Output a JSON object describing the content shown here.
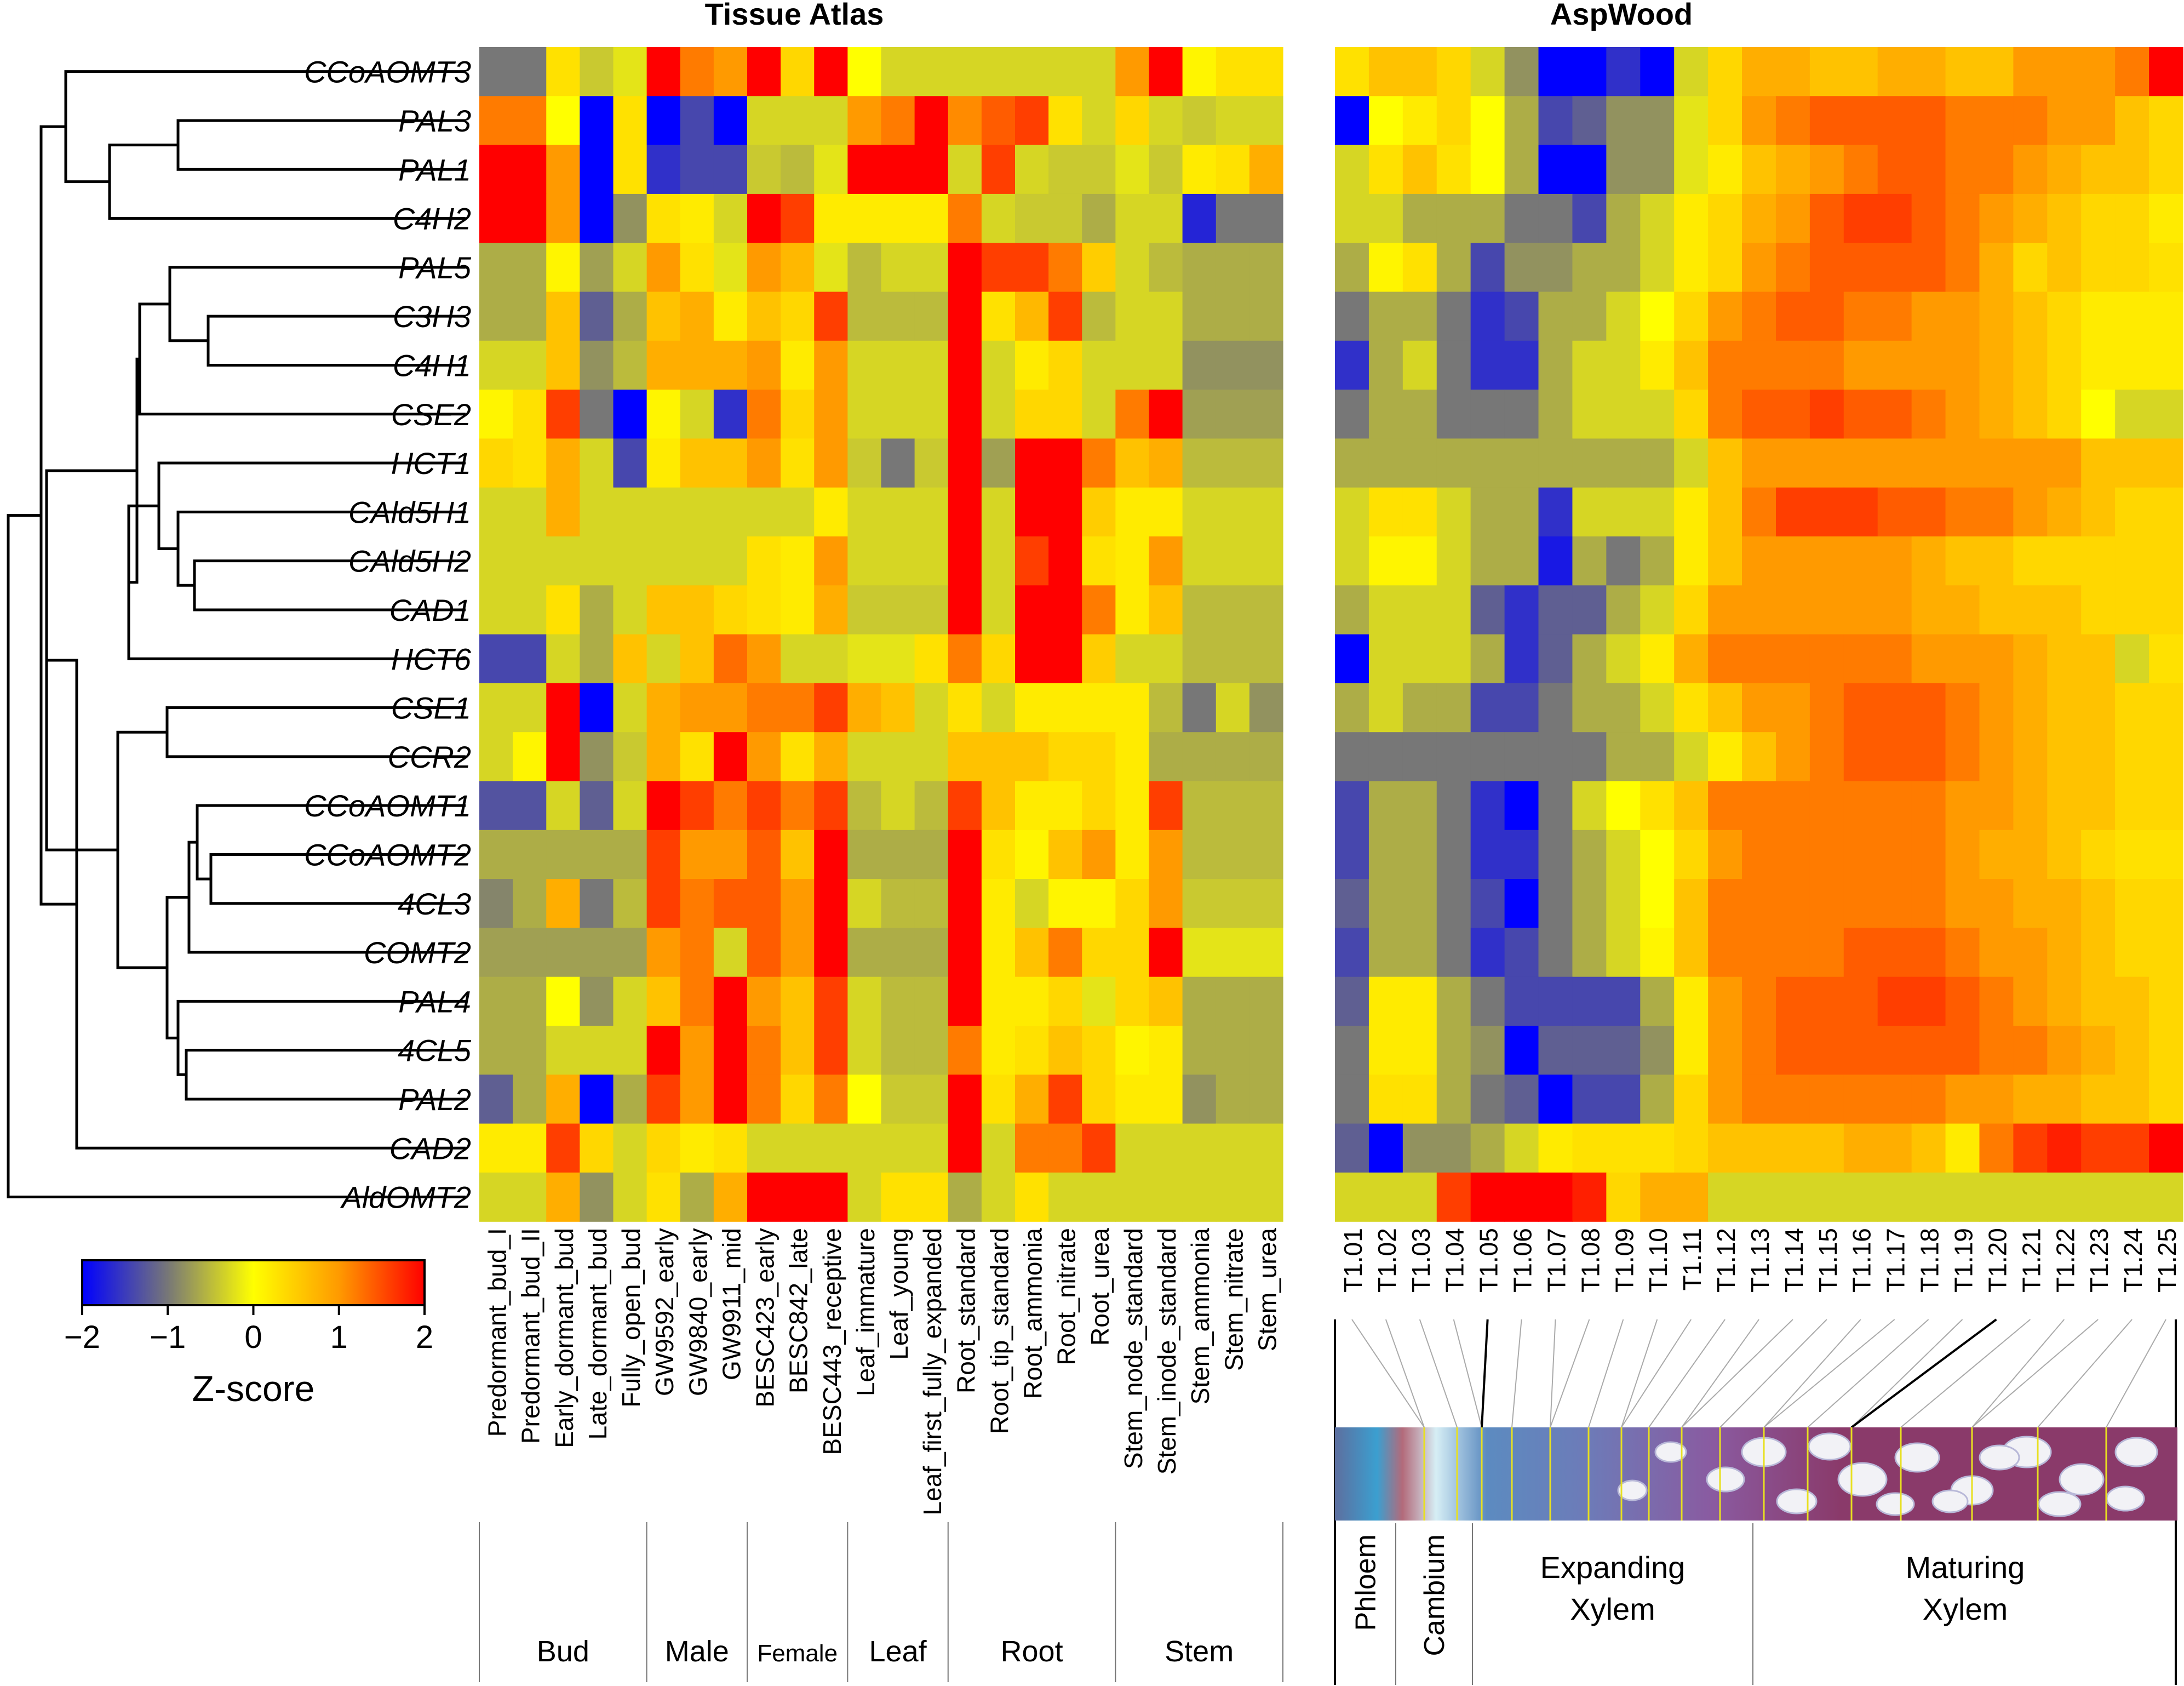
{
  "colors": {
    "cmap": [
      "#0000ff",
      "#777777",
      "#ffff00",
      "#ff9a00",
      "#ff0000"
    ]
  },
  "chart_data": {
    "type": "heatmap",
    "titles": {
      "left": "Tissue Atlas",
      "right": "AspWood"
    },
    "genes": [
      "CCoAOMT3",
      "PAL3",
      "PAL1",
      "C4H2",
      "PAL5",
      "C3H3",
      "C4H1",
      "CSE2",
      "HCT1",
      "CAld5H1",
      "CAld5H2",
      "CAD1",
      "HCT6",
      "CSE1",
      "CCR2",
      "CCoAOMT1",
      "CCoAOMT2",
      "4CL3",
      "COMT2",
      "PAL4",
      "4CL5",
      "PAL2",
      "CAD2",
      "AldOMT2"
    ],
    "atlas_samples": [
      "Predormant_bud_I",
      "Predormant_bud_II",
      "Early_dormant_bud",
      "Late_dormant_bud",
      "Fully_open_bud",
      "GW9592_early",
      "GW9840_early",
      "GW9911_mid",
      "BESC423_early",
      "BESC842_late",
      "BESC443_receptive",
      "Leaf_immature",
      "Leaf_young",
      "Leaf_first_fully_expanded",
      "Root_standard",
      "Root_tip_standard",
      "Root_ammonia",
      "Root_nitrate",
      "Root_urea",
      "Stem_node_standard",
      "Stem_inode_standard",
      "Stem_ammonia",
      "Stem_nitrate",
      "Stem_urea"
    ],
    "atlas_groups": [
      "Bud",
      "Male",
      "Female",
      "Leaf",
      "Root",
      "Stem"
    ],
    "aspwood_samples": [
      "T1.01",
      "T1.02",
      "T1.03",
      "T1.04",
      "T1.05",
      "T1.06",
      "T1.07",
      "T1.08",
      "T1.09",
      "T1.10",
      "T1.11",
      "T1.12",
      "T1.13",
      "T1.14",
      "T1.15",
      "T1.16",
      "T1.17",
      "T1.18",
      "T1.19",
      "T1.20",
      "T1.21",
      "T1.22",
      "T1.23",
      "T1.24",
      "T1.25"
    ],
    "aspwood_zones": [
      "Phloem",
      "Cambium",
      "Expanding\nXylem",
      "Maturing\nXylem"
    ],
    "colorbar": {
      "label": "Z-score",
      "ticks": [
        "−2",
        "−1",
        "0",
        "1",
        "2"
      ],
      "range": [
        -2,
        2
      ]
    },
    "atlas_values": [
      [
        -1,
        -1,
        0.3,
        -0.4,
        -0.2,
        2,
        1.2,
        1,
        2,
        0.4,
        2,
        0,
        -0.3,
        -0.3,
        -0.3,
        -0.3,
        -0.3,
        -0.3,
        -0.3,
        1,
        2,
        0.1,
        0.3,
        0.3
      ],
      [
        1.2,
        1.2,
        0,
        -2,
        0.3,
        -2,
        -1.4,
        -2,
        -0.3,
        -0.3,
        -0.3,
        1,
        1.2,
        2,
        1.1,
        1.4,
        1.6,
        0.3,
        -0.3,
        0.4,
        -0.3,
        -0.4,
        -0.3,
        -0.3
      ],
      [
        2,
        2,
        1,
        -2,
        0.3,
        -1.6,
        -1.4,
        -1.4,
        -0.4,
        -0.5,
        -0.2,
        2,
        2,
        2,
        -0.3,
        1.6,
        -0.3,
        -0.4,
        -0.4,
        -0.2,
        -0.4,
        0.2,
        0.3,
        0.8
      ],
      [
        2,
        2,
        1,
        -2,
        -0.8,
        0.3,
        0.2,
        -0.3,
        2,
        1.6,
        0.2,
        0.2,
        0.2,
        0.2,
        1.2,
        -0.3,
        -0.4,
        -0.4,
        -0.6,
        -0.3,
        -0.3,
        -1.7,
        -1,
        -1
      ],
      [
        -0.6,
        -0.6,
        0.1,
        -0.7,
        -0.3,
        1,
        0.3,
        -0.2,
        1,
        0.7,
        -0.2,
        -0.5,
        -0.3,
        -0.3,
        2,
        1.6,
        1.6,
        1.2,
        0.5,
        -0.3,
        -0.5,
        -0.6,
        -0.6,
        -0.6
      ],
      [
        -0.6,
        -0.6,
        0.6,
        -1.2,
        -0.6,
        0.6,
        0.8,
        0.2,
        0.6,
        0.4,
        1.6,
        -0.5,
        -0.5,
        -0.5,
        2,
        0.3,
        0.7,
        1.6,
        -0.5,
        -0.3,
        -0.3,
        -0.6,
        -0.6,
        -0.6
      ],
      [
        -0.3,
        -0.3,
        0.6,
        -0.8,
        -0.5,
        0.8,
        0.8,
        0.8,
        1,
        0.2,
        1,
        -0.3,
        -0.3,
        -0.3,
        2,
        -0.3,
        0.2,
        0.4,
        -0.3,
        -0.3,
        -0.3,
        -0.8,
        -0.8,
        -0.8
      ],
      [
        0.1,
        0.3,
        1.6,
        -1,
        -2,
        0.1,
        -0.3,
        -1.6,
        1.2,
        0.4,
        1,
        -0.3,
        -0.3,
        -0.3,
        2,
        -0.3,
        0.4,
        0.4,
        -0.3,
        1.2,
        2,
        -0.7,
        -0.7,
        -0.7
      ],
      [
        0.4,
        0.3,
        0.8,
        -0.3,
        -1.4,
        0.2,
        0.6,
        0.6,
        1,
        0.3,
        1,
        -0.4,
        -1,
        -0.4,
        2,
        -0.7,
        2,
        2,
        1.2,
        0.6,
        0.8,
        -0.5,
        -0.5,
        -0.5
      ],
      [
        -0.3,
        -0.3,
        0.8,
        -0.3,
        -0.3,
        -0.3,
        -0.3,
        -0.3,
        -0.3,
        -0.3,
        0.2,
        -0.3,
        -0.3,
        -0.3,
        2,
        -0.3,
        2,
        2,
        0.5,
        0.2,
        0.2,
        -0.3,
        -0.3,
        -0.3
      ],
      [
        -0.3,
        -0.3,
        -0.3,
        -0.3,
        -0.3,
        -0.3,
        -0.3,
        -0.3,
        0.3,
        0.2,
        1,
        -0.3,
        -0.3,
        -0.3,
        2,
        -0.3,
        1.6,
        2,
        0.3,
        0.2,
        1,
        -0.3,
        -0.3,
        -0.3
      ],
      [
        -0.3,
        -0.3,
        0.3,
        -0.6,
        -0.3,
        0.6,
        0.6,
        0.4,
        0.3,
        0.2,
        0.8,
        -0.4,
        -0.4,
        -0.4,
        2,
        -0.3,
        2,
        2,
        1.2,
        0.2,
        0.6,
        -0.5,
        -0.5,
        -0.5
      ],
      [
        -1.4,
        -1.4,
        -0.3,
        -0.6,
        0.6,
        -0.3,
        0.6,
        1.3,
        1,
        -0.3,
        -0.3,
        -0.2,
        -0.2,
        0.3,
        1.2,
        0.4,
        2,
        2,
        0.5,
        -0.3,
        -0.3,
        -0.5,
        -0.5,
        -0.5
      ],
      [
        -0.3,
        -0.3,
        2,
        -2,
        -0.3,
        0.8,
        1,
        1,
        1.2,
        1.2,
        1.6,
        0.8,
        0.6,
        -0.3,
        0.3,
        -0.3,
        0.2,
        0.2,
        0.2,
        0.2,
        -0.5,
        -1,
        -0.3,
        -0.8
      ],
      [
        -0.3,
        0.1,
        2,
        -0.8,
        -0.4,
        0.8,
        0.3,
        2,
        1,
        0.3,
        0.8,
        -0.3,
        -0.3,
        -0.3,
        0.6,
        0.6,
        0.6,
        0.4,
        0.4,
        0.2,
        -0.6,
        -0.6,
        -0.6,
        -0.6
      ],
      [
        -1.3,
        -1.3,
        -0.3,
        -1.2,
        -0.3,
        2,
        1.6,
        1.2,
        1.6,
        1.2,
        1.6,
        -0.5,
        -0.3,
        -0.5,
        1.6,
        0.6,
        0.2,
        0.2,
        0.4,
        0.2,
        1.6,
        -0.5,
        -0.5,
        -0.5
      ],
      [
        -0.6,
        -0.6,
        -0.6,
        -0.6,
        -0.6,
        1.6,
        1,
        1,
        1.4,
        0.6,
        2,
        -0.6,
        -0.6,
        -0.6,
        2,
        0.3,
        0.1,
        0.6,
        1,
        0.2,
        1,
        -0.5,
        -0.5,
        -0.5
      ],
      [
        -0.9,
        -0.6,
        0.8,
        -1,
        -0.5,
        1.6,
        1.2,
        1.4,
        1.4,
        1,
        2,
        -0.3,
        -0.5,
        -0.5,
        2,
        0.2,
        -0.3,
        0.1,
        0.1,
        0.4,
        1,
        -0.4,
        -0.4,
        -0.4
      ],
      [
        -0.7,
        -0.7,
        -0.7,
        -0.7,
        -0.7,
        1,
        1.2,
        -0.3,
        1.4,
        1,
        2,
        -0.6,
        -0.6,
        -0.6,
        2,
        0.2,
        0.6,
        1.2,
        0.4,
        0.4,
        2,
        -0.2,
        -0.2,
        -0.2
      ],
      [
        -0.6,
        -0.6,
        0,
        -0.8,
        -0.3,
        0.6,
        1.2,
        2,
        1,
        0.6,
        1.6,
        -0.3,
        -0.5,
        -0.5,
        2,
        0.2,
        0.2,
        0.4,
        -0.2,
        0.4,
        0.6,
        -0.6,
        -0.6,
        -0.6
      ],
      [
        -0.6,
        -0.6,
        -0.3,
        -0.3,
        -0.3,
        2,
        1,
        2,
        1.2,
        0.6,
        1.6,
        -0.3,
        -0.5,
        -0.5,
        1.2,
        0.2,
        0.3,
        0.6,
        0.4,
        0.1,
        0.2,
        -0.6,
        -0.6,
        -0.6
      ],
      [
        -1.2,
        -0.6,
        0.8,
        -2,
        -0.6,
        1.6,
        1,
        2,
        1.2,
        0.4,
        1.2,
        0,
        -0.4,
        -0.4,
        2,
        0.3,
        0.8,
        1.6,
        0.4,
        0.2,
        0.2,
        -0.8,
        -0.6,
        -0.6
      ],
      [
        0.2,
        0.2,
        1.6,
        0.4,
        -0.3,
        0.4,
        0.2,
        0.3,
        -0.3,
        -0.3,
        -0.3,
        -0.3,
        -0.3,
        -0.3,
        2,
        -0.3,
        1.2,
        1.2,
        1.6,
        -0.3,
        -0.3,
        -0.3,
        -0.3,
        -0.3
      ],
      [
        -0.3,
        -0.3,
        0.8,
        -0.8,
        -0.3,
        0.3,
        -0.6,
        0.8,
        2,
        2,
        2,
        -0.3,
        0.3,
        0.3,
        -0.6,
        -0.3,
        0.3,
        -0.3,
        -0.3,
        -0.3,
        -0.3,
        -0.3,
        -0.3,
        -0.3
      ]
    ],
    "aspwood_values": [
      [
        0.3,
        0.6,
        0.6,
        0.4,
        -0.3,
        -0.8,
        -2,
        -2,
        -1.6,
        -2,
        -0.3,
        0.4,
        0.8,
        0.8,
        0.6,
        0.6,
        0.8,
        0.8,
        0.6,
        0.6,
        1,
        1,
        1,
        1.2,
        2
      ],
      [
        -2,
        0,
        0.2,
        0.4,
        0,
        -0.6,
        -1.4,
        -1.2,
        -0.8,
        -0.8,
        -0.2,
        0.4,
        1,
        1.2,
        1.4,
        1.4,
        1.4,
        1.4,
        1.2,
        1.2,
        1.2,
        1,
        1,
        0.6,
        0.4
      ],
      [
        -0.3,
        0.3,
        0.6,
        0.3,
        0,
        -0.6,
        -2,
        -2,
        -0.8,
        -0.8,
        -0.2,
        0.2,
        0.6,
        0.8,
        1,
        1.2,
        1.4,
        1.4,
        1.2,
        1.2,
        1,
        0.8,
        0.6,
        0.6,
        0.4
      ],
      [
        -0.3,
        -0.3,
        -0.6,
        -0.6,
        -0.6,
        -1,
        -1,
        -1.4,
        -0.6,
        -0.3,
        0.2,
        0.4,
        0.8,
        1,
        1.4,
        1.6,
        1.6,
        1.4,
        1.2,
        1,
        0.8,
        0.6,
        0.4,
        0.4,
        0.2
      ],
      [
        -0.6,
        0.1,
        0.3,
        -0.6,
        -1.4,
        -0.8,
        -0.8,
        -0.6,
        -0.6,
        -0.3,
        0.2,
        0.4,
        1,
        1.2,
        1.4,
        1.4,
        1.4,
        1.4,
        1.2,
        0.8,
        0.4,
        0.6,
        0.4,
        0.4,
        0.3
      ],
      [
        -1,
        -0.6,
        -0.6,
        -1,
        -1.6,
        -1.4,
        -0.6,
        -0.6,
        -0.3,
        0,
        0.4,
        1,
        1.2,
        1.4,
        1.4,
        1.2,
        1.2,
        1,
        1,
        0.8,
        0.6,
        0.4,
        0.2,
        0.2,
        0.2
      ],
      [
        -1.6,
        -0.6,
        -0.3,
        -1,
        -1.6,
        -1.6,
        -0.6,
        -0.3,
        -0.3,
        0.2,
        0.6,
        1.2,
        1.2,
        1.2,
        1.2,
        1,
        1,
        1,
        1,
        0.8,
        0.6,
        0.4,
        0.2,
        0.2,
        0.2
      ],
      [
        -1,
        -0.6,
        -0.6,
        -1,
        -1,
        -1,
        -0.6,
        -0.3,
        -0.3,
        -0.3,
        0.4,
        1.2,
        1.4,
        1.4,
        1.6,
        1.4,
        1.4,
        1.2,
        1,
        0.8,
        0.6,
        0.4,
        0,
        -0.3,
        -0.3
      ],
      [
        -0.6,
        -0.6,
        -0.6,
        -0.6,
        -0.6,
        -0.6,
        -0.6,
        -0.6,
        -0.6,
        -0.6,
        -0.3,
        0.6,
        1,
        1,
        1,
        1,
        1,
        1,
        1,
        1,
        1,
        1,
        0.6,
        0.6,
        0.6
      ],
      [
        -0.3,
        0.3,
        0.3,
        -0.3,
        -0.6,
        -0.6,
        -1.6,
        -0.3,
        -0.3,
        -0.3,
        0.2,
        0.6,
        1.2,
        1.6,
        1.6,
        1.6,
        1.4,
        1.4,
        1.2,
        1.2,
        1,
        0.8,
        0.6,
        0.4,
        0.4
      ],
      [
        -0.3,
        0.1,
        0.1,
        -0.3,
        -0.6,
        -0.6,
        -1.8,
        -0.6,
        -1,
        -0.6,
        0.2,
        0.6,
        1,
        1,
        1,
        1,
        1,
        0.8,
        0.6,
        0.6,
        0.4,
        0.4,
        0.4,
        0.4,
        0.4
      ],
      [
        -0.6,
        -0.3,
        -0.3,
        -0.3,
        -1.2,
        -1.6,
        -1.2,
        -1.2,
        -0.6,
        -0.3,
        0.4,
        1,
        1,
        1,
        1,
        1,
        1,
        0.8,
        0.8,
        0.6,
        0.6,
        0.6,
        0.4,
        0.4,
        0.4
      ],
      [
        -2,
        -0.3,
        -0.3,
        -0.3,
        -0.6,
        -1.6,
        -1.2,
        -0.6,
        -0.3,
        0.2,
        0.8,
        1.2,
        1.2,
        1.2,
        1.2,
        1.2,
        1.2,
        1,
        1,
        1,
        0.8,
        0.6,
        0.6,
        -0.3,
        0.3
      ],
      [
        -0.6,
        -0.3,
        -0.6,
        -0.6,
        -1.4,
        -1.4,
        -1,
        -0.6,
        -0.6,
        -0.3,
        0.3,
        0.6,
        1,
        1,
        1.2,
        1.4,
        1.4,
        1.4,
        1.2,
        1,
        0.8,
        0.6,
        0.6,
        0.4,
        0.4
      ],
      [
        -1,
        -1,
        -1,
        -1,
        -1,
        -1,
        -1,
        -1,
        -0.6,
        -0.6,
        -0.3,
        0.2,
        0.6,
        1,
        1.2,
        1.4,
        1.4,
        1.4,
        1.2,
        1,
        0.8,
        0.6,
        0.6,
        0.4,
        0.4
      ],
      [
        -1.4,
        -0.6,
        -0.6,
        -1,
        -1.6,
        -2,
        -1,
        -0.3,
        0,
        0.3,
        0.6,
        1.2,
        1.2,
        1.2,
        1.2,
        1.2,
        1.2,
        1.2,
        1,
        1,
        0.8,
        0.6,
        0.6,
        0.4,
        0.4
      ],
      [
        -1.4,
        -0.6,
        -0.6,
        -1,
        -1.6,
        -1.6,
        -1,
        -0.6,
        -0.3,
        0,
        0.4,
        1,
        1.2,
        1.2,
        1.2,
        1.2,
        1.2,
        1.2,
        1,
        0.8,
        0.8,
        0.6,
        0.4,
        0.3,
        0.3
      ],
      [
        -1.2,
        -0.6,
        -0.6,
        -1,
        -1.4,
        -2,
        -1,
        -0.6,
        -0.3,
        0,
        0.6,
        1.2,
        1.2,
        1.2,
        1.2,
        1.2,
        1.2,
        1.2,
        1,
        1,
        0.8,
        0.8,
        0.6,
        0.4,
        0.4
      ],
      [
        -1.4,
        -0.6,
        -0.6,
        -1,
        -1.6,
        -1.4,
        -1,
        -0.6,
        -0.3,
        0.1,
        0.6,
        1.2,
        1.2,
        1.2,
        1.2,
        1.4,
        1.4,
        1.4,
        1.2,
        1,
        1,
        0.8,
        0.6,
        0.4,
        0.4
      ],
      [
        -1.2,
        0.2,
        0.2,
        -0.6,
        -1,
        -1.4,
        -1.4,
        -1.4,
        -1.4,
        -0.6,
        0.2,
        1,
        1.2,
        1.4,
        1.4,
        1.4,
        1.6,
        1.6,
        1.4,
        1.2,
        1,
        0.8,
        0.6,
        0.6,
        0.4
      ],
      [
        -1,
        0.2,
        0.2,
        -0.6,
        -0.8,
        -2,
        -1.2,
        -1.2,
        -1.2,
        -0.8,
        0.2,
        1,
        1.2,
        1.4,
        1.4,
        1.4,
        1.4,
        1.4,
        1.4,
        1.2,
        1.2,
        1,
        0.8,
        0.6,
        0.4
      ],
      [
        -1,
        0.3,
        0.3,
        -0.6,
        -1,
        -1.2,
        -2,
        -1.4,
        -1.4,
        -0.6,
        0.4,
        1,
        1.2,
        1.2,
        1.2,
        1.2,
        1.2,
        1.2,
        1,
        1,
        0.8,
        0.8,
        0.6,
        0.6,
        0.4
      ],
      [
        -1.2,
        -2,
        -0.8,
        -0.8,
        -0.6,
        -0.3,
        0.2,
        0.3,
        0.3,
        0.3,
        0.4,
        0.6,
        0.6,
        0.6,
        0.6,
        0.8,
        0.8,
        0.6,
        0.2,
        1.2,
        1.6,
        1.8,
        1.6,
        1.6,
        2
      ],
      [
        -0.3,
        -0.3,
        -0.3,
        1.6,
        2,
        2,
        2,
        1.8,
        0.4,
        0.8,
        0.8,
        -0.3,
        -0.3,
        -0.3,
        -0.3,
        -0.3,
        -0.3,
        -0.3,
        -0.3,
        -0.3,
        -0.3,
        -0.3,
        -0.3,
        -0.3,
        -0.3
      ]
    ]
  }
}
